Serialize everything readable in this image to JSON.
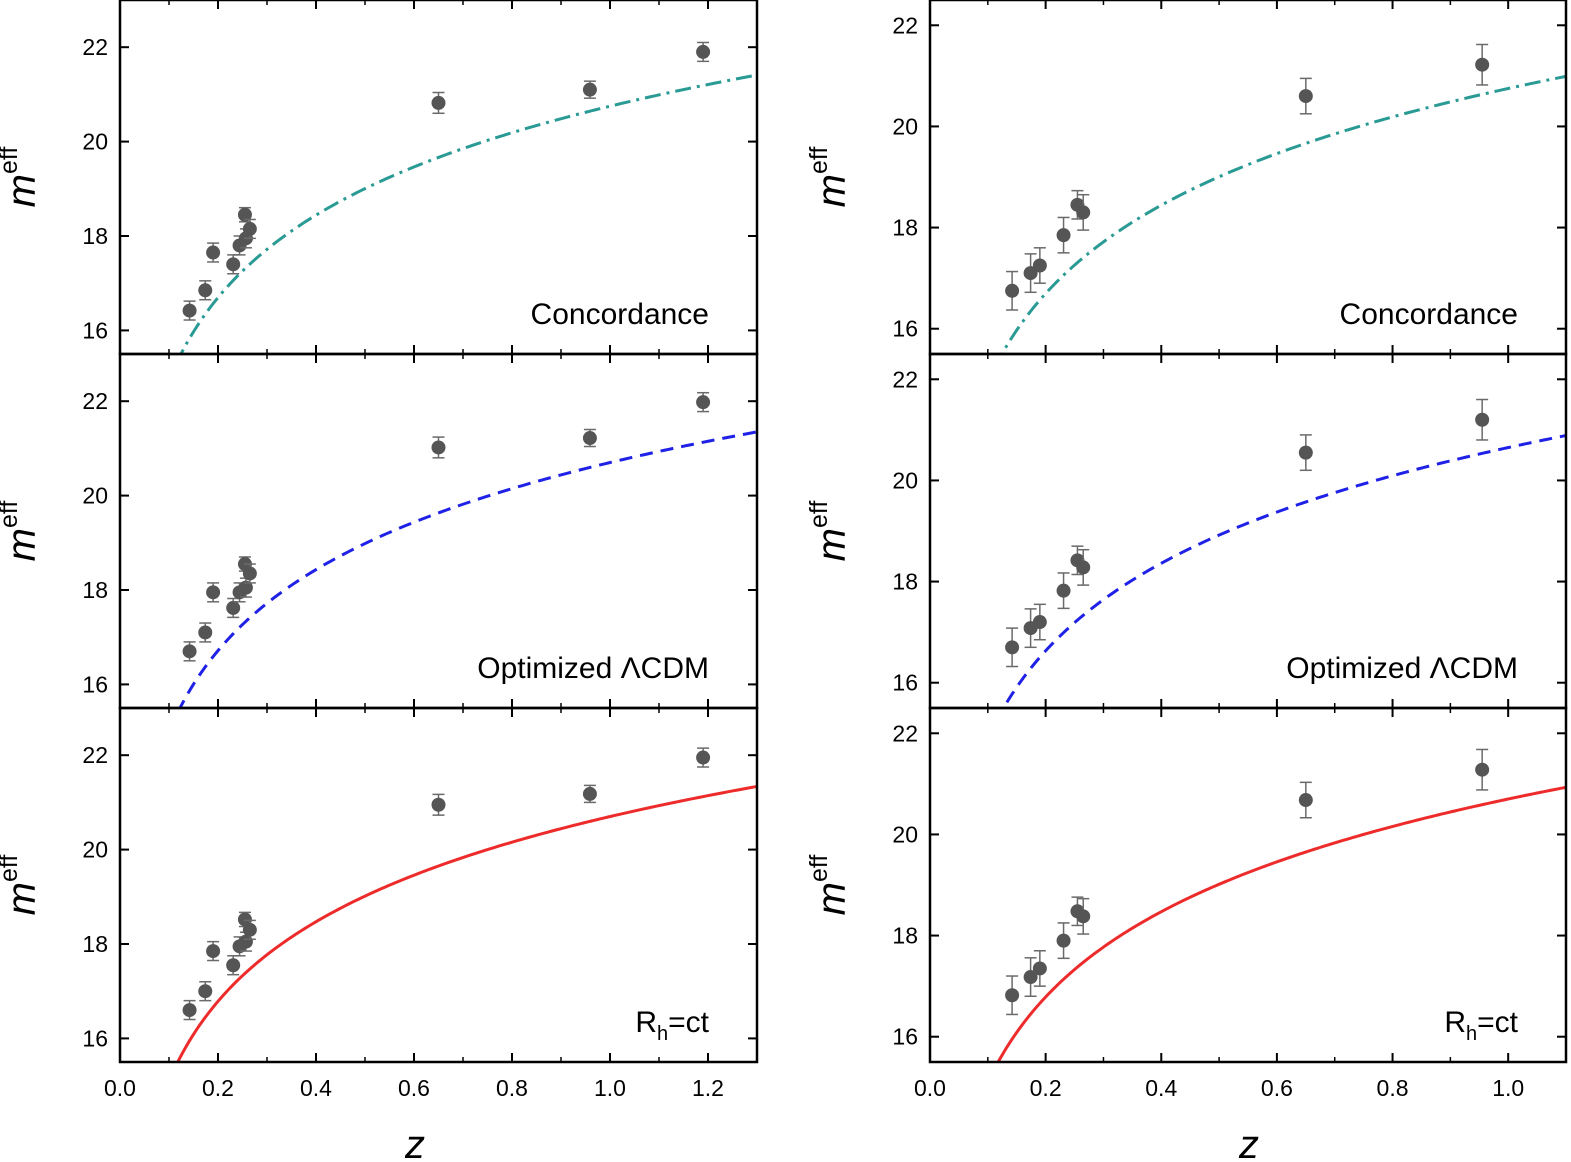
{
  "figure": {
    "xlabel": "z",
    "ylabel_base": "m",
    "ylabel_sup": "eff"
  },
  "chart_data": [
    {
      "type": "scatter",
      "id": "left-concordance",
      "column": "left",
      "row": 0,
      "label": "Concordance",
      "label_sub": "",
      "label_tail": "",
      "xlim": [
        0.0,
        1.3
      ],
      "ylim": [
        15.5,
        23.0
      ],
      "xticks": [
        0.0,
        0.2,
        0.4,
        0.6,
        0.8,
        1.0,
        1.2
      ],
      "xtick_labels": [
        "0.0",
        "0.2",
        "0.4",
        "0.6",
        "0.8",
        "1.0",
        "1.2"
      ],
      "yticks": [
        16,
        18,
        20,
        22
      ],
      "ytick_labels": [
        "16",
        "18",
        "20",
        "22"
      ],
      "curve": {
        "style": "dashdot",
        "color": "#2a9a94",
        "a": 20.75,
        "b": 5.8,
        "z_min": 0.09,
        "z_max": 1.3
      },
      "points": [
        {
          "z": 0.142,
          "m": 16.42,
          "err": 0.2
        },
        {
          "z": 0.174,
          "m": 16.85,
          "err": 0.2
        },
        {
          "z": 0.19,
          "m": 17.65,
          "err": 0.2
        },
        {
          "z": 0.231,
          "m": 17.4,
          "err": 0.2
        },
        {
          "z": 0.244,
          "m": 17.8,
          "err": 0.2
        },
        {
          "z": 0.255,
          "m": 18.45,
          "err": 0.15
        },
        {
          "z": 0.257,
          "m": 17.95,
          "err": 0.2
        },
        {
          "z": 0.265,
          "m": 18.15,
          "err": 0.2
        },
        {
          "z": 0.65,
          "m": 20.82,
          "err": 0.22
        },
        {
          "z": 0.959,
          "m": 21.1,
          "err": 0.18
        },
        {
          "z": 1.19,
          "m": 21.9,
          "err": 0.2
        }
      ]
    },
    {
      "type": "scatter",
      "id": "left-optimized",
      "column": "left",
      "row": 1,
      "label": "Optimized ",
      "label_sub": "",
      "label_tail": "ΛCDM",
      "xlim": [
        0.0,
        1.3
      ],
      "ylim": [
        15.5,
        23.0
      ],
      "xticks": [
        0.0,
        0.2,
        0.4,
        0.6,
        0.8,
        1.0,
        1.2
      ],
      "xtick_labels": [
        "0.0",
        "0.2",
        "0.4",
        "0.6",
        "0.8",
        "1.0",
        "1.2"
      ],
      "yticks": [
        16,
        18,
        20,
        22
      ],
      "ytick_labels": [
        "16",
        "18",
        "20",
        "22"
      ],
      "curve": {
        "style": "dashed",
        "color": "#1f22e6",
        "a": 20.7,
        "b": 5.7,
        "z_min": 0.085,
        "z_max": 1.3
      },
      "points": [
        {
          "z": 0.142,
          "m": 16.7,
          "err": 0.2
        },
        {
          "z": 0.174,
          "m": 17.1,
          "err": 0.2
        },
        {
          "z": 0.19,
          "m": 17.95,
          "err": 0.2
        },
        {
          "z": 0.231,
          "m": 17.62,
          "err": 0.2
        },
        {
          "z": 0.244,
          "m": 17.95,
          "err": 0.2
        },
        {
          "z": 0.255,
          "m": 18.55,
          "err": 0.15
        },
        {
          "z": 0.257,
          "m": 18.05,
          "err": 0.2
        },
        {
          "z": 0.265,
          "m": 18.35,
          "err": 0.2
        },
        {
          "z": 0.65,
          "m": 21.02,
          "err": 0.22
        },
        {
          "z": 0.959,
          "m": 21.22,
          "err": 0.18
        },
        {
          "z": 1.19,
          "m": 21.98,
          "err": 0.2
        }
      ]
    },
    {
      "type": "scatter",
      "id": "left-rhct",
      "column": "left",
      "row": 2,
      "label": "R",
      "label_sub": "h",
      "label_tail": "=ct",
      "xlim": [
        0.0,
        1.3
      ],
      "ylim": [
        15.5,
        23.0
      ],
      "xticks": [
        0.0,
        0.2,
        0.4,
        0.6,
        0.8,
        1.0,
        1.2
      ],
      "xtick_labels": [
        "0.0",
        "0.2",
        "0.4",
        "0.6",
        "0.8",
        "1.0",
        "1.2"
      ],
      "yticks": [
        16,
        18,
        20,
        22
      ],
      "ytick_labels": [
        "16",
        "18",
        "20",
        "22"
      ],
      "curve": {
        "style": "solid",
        "color": "#ee2b2b",
        "a": 20.7,
        "b": 5.6,
        "z_min": 0.08,
        "z_max": 1.3
      },
      "points": [
        {
          "z": 0.142,
          "m": 16.6,
          "err": 0.2
        },
        {
          "z": 0.174,
          "m": 17.0,
          "err": 0.2
        },
        {
          "z": 0.19,
          "m": 17.85,
          "err": 0.2
        },
        {
          "z": 0.231,
          "m": 17.55,
          "err": 0.2
        },
        {
          "z": 0.244,
          "m": 17.95,
          "err": 0.2
        },
        {
          "z": 0.255,
          "m": 18.52,
          "err": 0.15
        },
        {
          "z": 0.257,
          "m": 18.05,
          "err": 0.2
        },
        {
          "z": 0.265,
          "m": 18.3,
          "err": 0.2
        },
        {
          "z": 0.65,
          "m": 20.95,
          "err": 0.22
        },
        {
          "z": 0.959,
          "m": 21.18,
          "err": 0.18
        },
        {
          "z": 1.19,
          "m": 21.95,
          "err": 0.2
        }
      ]
    },
    {
      "type": "scatter",
      "id": "right-concordance",
      "column": "right",
      "row": 0,
      "label": "Concordance",
      "label_sub": "",
      "label_tail": "",
      "xlim": [
        0.0,
        1.1
      ],
      "ylim": [
        15.5,
        22.5
      ],
      "xticks": [
        0.0,
        0.2,
        0.4,
        0.6,
        0.8,
        1.0
      ],
      "xtick_labels": [
        "0.0",
        "0.2",
        "0.4",
        "0.6",
        "0.8",
        "1.0"
      ],
      "yticks": [
        16,
        18,
        20,
        22
      ],
      "ytick_labels": [
        "16",
        "18",
        "20",
        "22"
      ],
      "curve": {
        "style": "dashdot",
        "color": "#2a9a94",
        "a": 20.75,
        "b": 5.8,
        "z_min": 0.09,
        "z_max": 1.1
      },
      "points": [
        {
          "z": 0.142,
          "m": 16.75,
          "err": 0.38
        },
        {
          "z": 0.174,
          "m": 17.1,
          "err": 0.38
        },
        {
          "z": 0.19,
          "m": 17.25,
          "err": 0.35
        },
        {
          "z": 0.231,
          "m": 17.85,
          "err": 0.35
        },
        {
          "z": 0.255,
          "m": 18.45,
          "err": 0.28
        },
        {
          "z": 0.265,
          "m": 18.3,
          "err": 0.35
        },
        {
          "z": 0.65,
          "m": 20.6,
          "err": 0.35
        },
        {
          "z": 0.955,
          "m": 21.22,
          "err": 0.4
        }
      ]
    },
    {
      "type": "scatter",
      "id": "right-optimized",
      "column": "right",
      "row": 1,
      "label": "Optimized ",
      "label_sub": "",
      "label_tail": "ΛCDM",
      "xlim": [
        0.0,
        1.1
      ],
      "ylim": [
        15.5,
        22.5
      ],
      "xticks": [
        0.0,
        0.2,
        0.4,
        0.6,
        0.8,
        1.0
      ],
      "xtick_labels": [
        "0.0",
        "0.2",
        "0.4",
        "0.6",
        "0.8",
        "1.0"
      ],
      "yticks": [
        16,
        18,
        20,
        22
      ],
      "ytick_labels": [
        "16",
        "18",
        "20",
        "22"
      ],
      "curve": {
        "style": "dashed",
        "color": "#1f22e6",
        "a": 20.65,
        "b": 5.75,
        "z_min": 0.085,
        "z_max": 1.1
      },
      "points": [
        {
          "z": 0.142,
          "m": 16.7,
          "err": 0.38
        },
        {
          "z": 0.174,
          "m": 17.08,
          "err": 0.38
        },
        {
          "z": 0.19,
          "m": 17.2,
          "err": 0.35
        },
        {
          "z": 0.231,
          "m": 17.82,
          "err": 0.35
        },
        {
          "z": 0.255,
          "m": 18.42,
          "err": 0.28
        },
        {
          "z": 0.265,
          "m": 18.28,
          "err": 0.35
        },
        {
          "z": 0.65,
          "m": 20.55,
          "err": 0.35
        },
        {
          "z": 0.955,
          "m": 21.2,
          "err": 0.4
        }
      ]
    },
    {
      "type": "scatter",
      "id": "right-rhct",
      "column": "right",
      "row": 2,
      "label": "R",
      "label_sub": "h",
      "label_tail": "=ct",
      "xlim": [
        0.0,
        1.1
      ],
      "ylim": [
        15.5,
        22.5
      ],
      "xticks": [
        0.0,
        0.2,
        0.4,
        0.6,
        0.8,
        1.0
      ],
      "xtick_labels": [
        "0.0",
        "0.2",
        "0.4",
        "0.6",
        "0.8",
        "1.0"
      ],
      "yticks": [
        16,
        18,
        20,
        22
      ],
      "ytick_labels": [
        "16",
        "18",
        "20",
        "22"
      ],
      "curve": {
        "style": "solid",
        "color": "#ee2b2b",
        "a": 20.7,
        "b": 5.6,
        "z_min": 0.08,
        "z_max": 1.1
      },
      "points": [
        {
          "z": 0.142,
          "m": 16.82,
          "err": 0.38
        },
        {
          "z": 0.174,
          "m": 17.18,
          "err": 0.38
        },
        {
          "z": 0.19,
          "m": 17.35,
          "err": 0.35
        },
        {
          "z": 0.231,
          "m": 17.9,
          "err": 0.35
        },
        {
          "z": 0.255,
          "m": 18.48,
          "err": 0.28
        },
        {
          "z": 0.265,
          "m": 18.38,
          "err": 0.35
        },
        {
          "z": 0.65,
          "m": 20.68,
          "err": 0.35
        },
        {
          "z": 0.955,
          "m": 21.28,
          "err": 0.4
        }
      ]
    }
  ]
}
